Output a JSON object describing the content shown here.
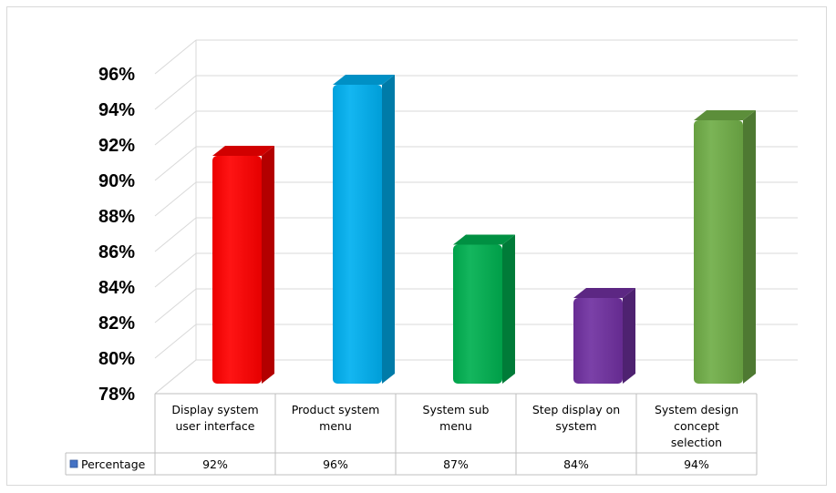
{
  "chart_data": {
    "type": "bar",
    "categories": [
      "Display system user interface",
      "Product system menu",
      "System sub menu",
      "Step display on system",
      "System design concept selection"
    ],
    "category_lines": [
      [
        "Display system",
        "user interface"
      ],
      [
        "Product system",
        "menu"
      ],
      [
        "System sub",
        "menu"
      ],
      [
        "Step display on",
        "system"
      ],
      [
        "System design",
        "concept",
        "selection"
      ]
    ],
    "series": [
      {
        "name": "Percentage",
        "values": [
          92,
          96,
          87,
          84,
          94
        ]
      }
    ],
    "value_labels": [
      "92%",
      "96%",
      "87%",
      "84%",
      "94%"
    ],
    "y_ticks": [
      78,
      80,
      82,
      84,
      86,
      88,
      90,
      92,
      94,
      96
    ],
    "y_tick_labels": [
      "78%",
      "80%",
      "82%",
      "84%",
      "86%",
      "88%",
      "90%",
      "92%",
      "94%",
      "96%"
    ],
    "ylim": [
      78,
      96
    ],
    "bar_colors": [
      "#ff0000",
      "#00b0f0",
      "#00b050",
      "#7030a0",
      "#70ad47"
    ],
    "legend_marker_color": "#4472c4",
    "grid": true,
    "data_table": true,
    "title": "",
    "xlabel": "",
    "ylabel": ""
  }
}
